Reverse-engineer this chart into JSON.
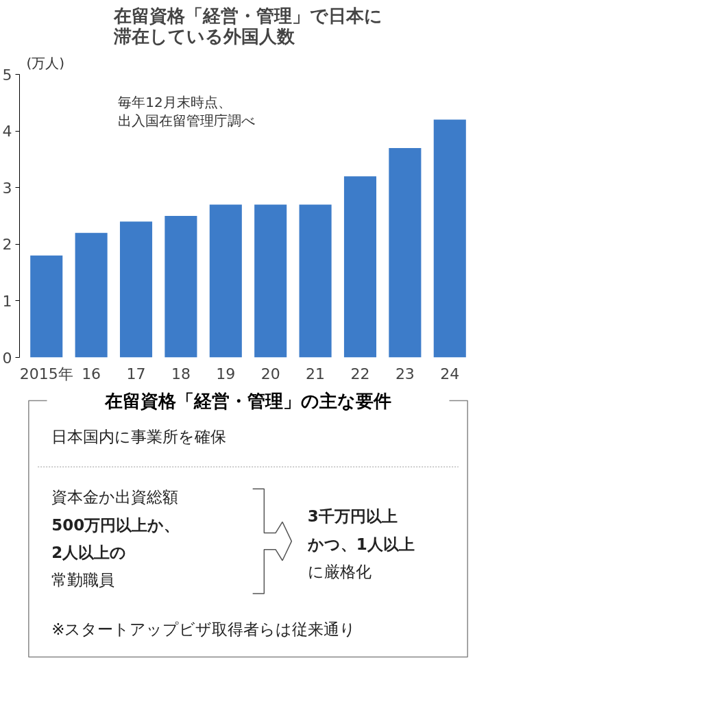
{
  "chart_data": [
    {
      "type": "bar",
      "title": "在留資格「経営・管理」で日本に滞在している外国人数",
      "ylabel": "(万人)",
      "categories": [
        "2015年",
        "16",
        "17",
        "18",
        "19",
        "20",
        "21",
        "22",
        "23",
        "24"
      ],
      "values": [
        1.8,
        2.2,
        2.4,
        2.5,
        2.7,
        2.7,
        2.7,
        3.2,
        3.7,
        4.2
      ],
      "color": "#3d7cc9",
      "ylim": [
        0,
        5
      ],
      "yticks": [
        0,
        1,
        2,
        3,
        4,
        5
      ],
      "grid": false,
      "annotations": [
        "毎年12月末時点、",
        "出入国在留管理庁調べ"
      ]
    },
    {
      "type": "other",
      "title": "在留資格「経営・管理」の主な要件",
      "annotations": [
        "日本国内に事業所を確保",
        "資本金か出資総額",
        "500万円以上か、",
        "2人以上の",
        "常勤職員",
        "3千万円以上",
        "かつ、1人以上",
        "に厳格化",
        "※スタートアップビザ取得者らは従来通り"
      ]
    }
  ]
}
